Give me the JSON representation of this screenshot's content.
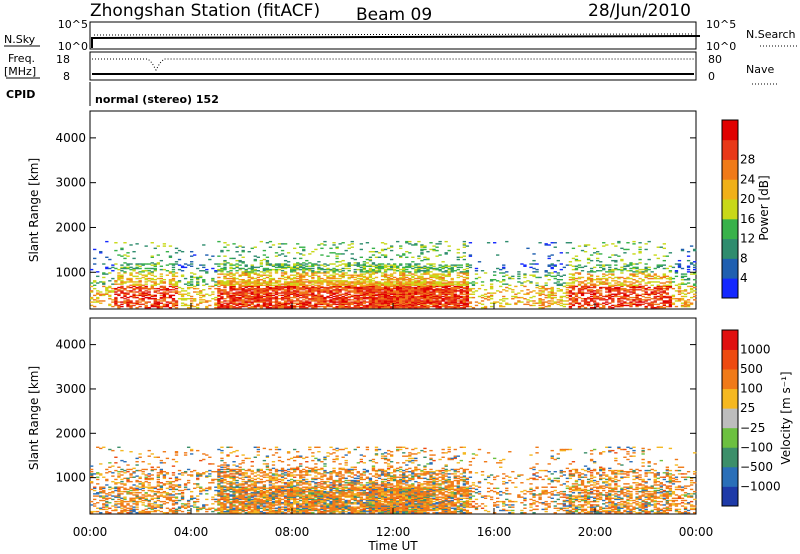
{
  "header": {
    "station": "Zhongshan Station (fitACF)",
    "beam": "Beam 09",
    "date": "28/Jun/2010"
  },
  "top_panels": {
    "nsky_label": "N.Sky",
    "nsky_ticks": [
      "10^5",
      "10^0"
    ],
    "nsearch_label": "N.Search",
    "nsearch_ticks": [
      "10^5",
      "10^0"
    ],
    "freq_label_line1": "Freq.",
    "freq_label_line2": "[MHz]",
    "freq_ticks": [
      "18",
      "8"
    ],
    "nave_label": "Nave",
    "nave_ticks": [
      "80",
      "0"
    ],
    "cpid_label": "CPID",
    "cpid_text": "normal (stereo) 152"
  },
  "chart_data": [
    {
      "type": "heatmap",
      "name": "power",
      "ylabel": "Slant Range [km]",
      "xlabel": "",
      "ylim": [
        180,
        4600
      ],
      "y_ticks": [
        "1000",
        "2000",
        "3000",
        "4000"
      ],
      "x_ticks": [
        "00:00",
        "04:00",
        "08:00",
        "12:00",
        "16:00",
        "20:00",
        "00:00"
      ],
      "colorbar": {
        "title": "Power [dB]",
        "tick_labels": [
          "4",
          "8",
          "12",
          "16",
          "20",
          "24",
          "28"
        ],
        "colors": [
          "#1428ff",
          "#1f5fb0",
          "#2f8c6e",
          "#38b24a",
          "#c8d818",
          "#f0b018",
          "#f07a18",
          "#e83818",
          "#e00000"
        ]
      }
    },
    {
      "type": "heatmap",
      "name": "velocity",
      "ylabel": "Slant Range [km]",
      "xlabel": "Time UT",
      "ylim": [
        180,
        4600
      ],
      "y_ticks": [
        "1000",
        "2000",
        "3000",
        "4000"
      ],
      "x_ticks": [
        "00:00",
        "04:00",
        "08:00",
        "12:00",
        "16:00",
        "20:00",
        "00:00"
      ],
      "colorbar": {
        "title": "Velocity [m s⁻¹]",
        "tick_labels": [
          "1000",
          "500",
          "100",
          "25",
          "−25",
          "−100",
          "−500",
          "−1000"
        ],
        "colors": [
          "#1e3aa8",
          "#2a6fb8",
          "#3c8f6a",
          "#6cc040",
          "#bdbdbd",
          "#f5b820",
          "#f07a18",
          "#ee4a10",
          "#e01010"
        ]
      }
    }
  ]
}
